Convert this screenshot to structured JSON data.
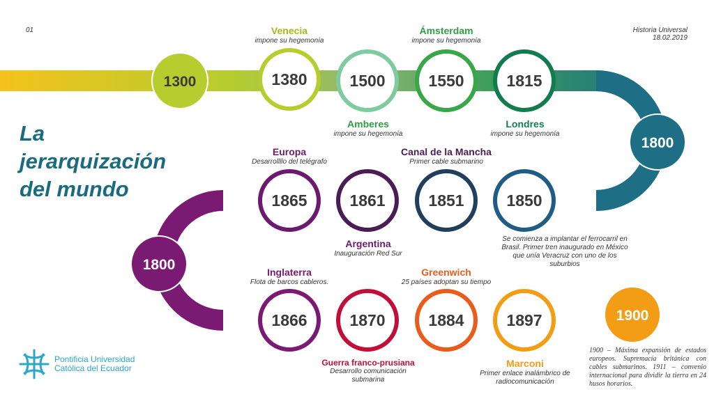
{
  "header": {
    "page_number": "01",
    "course": "Historia Universal",
    "date": "18.02.2019"
  },
  "title_lines": [
    "La",
    "jerarquización",
    "del mundo"
  ],
  "nodes": [
    {
      "year": "1300",
      "style": "filled",
      "color": "#b6cd2f"
    },
    {
      "year": "1380",
      "style": "ring",
      "color": "#b6cd2f"
    },
    {
      "year": "1500",
      "style": "ring",
      "color": "#7fcba0"
    },
    {
      "year": "1550",
      "style": "ring",
      "color": "#3aa64a"
    },
    {
      "year": "1815",
      "style": "ring",
      "color": "#137c4e"
    },
    {
      "year": "1800",
      "style": "filled",
      "color": "#1e6e85"
    },
    {
      "year": "1850",
      "style": "ring",
      "color": "#1f5c86"
    },
    {
      "year": "1851",
      "style": "ring",
      "color": "#213e5a"
    },
    {
      "year": "1861",
      "style": "ring",
      "color": "#4a1d55"
    },
    {
      "year": "1865",
      "style": "ring",
      "color": "#6c1a70"
    },
    {
      "year": "1800",
      "style": "filled",
      "color": "#7b1a72"
    },
    {
      "year": "1866",
      "style": "ring",
      "color": "#7b1a72"
    },
    {
      "year": "1870",
      "style": "ring",
      "color": "#c0103a"
    },
    {
      "year": "1884",
      "style": "ring",
      "color": "#e95c1c"
    },
    {
      "year": "1897",
      "style": "ring",
      "color": "#f39c16"
    },
    {
      "year": "1900",
      "style": "filled",
      "color": "#f39c16"
    }
  ],
  "labels": {
    "venecia": {
      "title": "Venecia",
      "sub": "impone su hegemonía",
      "color": "#a5b81a"
    },
    "amsterdam": {
      "title": "Ámsterdam",
      "sub": "impone su hegemonía",
      "color": "#2f9e44"
    },
    "amberes": {
      "title": "Amberes",
      "sub": "impone su hegemonía",
      "color": "#2f9e44"
    },
    "londres": {
      "title": "Londres",
      "sub": "impone su hegemonía",
      "color": "#137c4e"
    },
    "europa": {
      "title": "Europa",
      "sub": "Desarrollllo del telégrafo",
      "color": "#6c1a70"
    },
    "canal": {
      "title": "Canal de la Mancha",
      "sub": "Primer cable submarino",
      "color": "#4a1d55"
    },
    "argentina": {
      "title": "Argentina",
      "sub": "Inauguración Red Sur",
      "color": "#6c1a70"
    },
    "inglaterra": {
      "title": "Inglaterra",
      "sub": "Flota de barcos cableros.",
      "color": "#7b1a72"
    },
    "greenwich": {
      "title": "Greenwich",
      "sub": "25 países adoptan su tiempo",
      "color": "#e95c1c"
    },
    "guerra": {
      "title": "Guerra franco-prusiana",
      "sub": "Desarrollo comunicación submarina",
      "color": "#c0103a"
    },
    "marconi": {
      "title": "Marconi",
      "sub": "Primer enlace inalámbrico de radiocomunicación",
      "color": "#f39c16"
    }
  },
  "notes": {
    "brasil": "Se comienza a implantar el ferrocarril en Brasil. Primer tren inaugurado en México que unía Veracruz con uno de los suburbios",
    "n1900": "1900 – Máxima expansión de estados europeos. Supremacía británica con cables submarinos. 1911 – convenio internacional para dividir la tierra en 24 husos horarios."
  },
  "logo": {
    "line1": "Pontificia Universidad",
    "line2": "Católica del Ecuador",
    "color": "#2aa7c9"
  }
}
